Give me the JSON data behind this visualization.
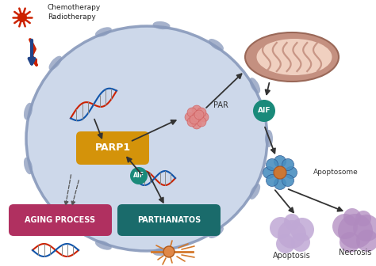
{
  "bg_color": "#ffffff",
  "cell_color": "#c8d4e8",
  "cell_border_color": "#8899bb",
  "parp1_color": "#d4930a",
  "parp1_text": "PARP1",
  "parp1_text_color": "#ffffff",
  "aging_color": "#b03060",
  "aging_text": "AGING PROCESS",
  "aging_text_color": "#ffffff",
  "parthanatos_color": "#1a6b6b",
  "parthanatos_text": "PARTHANATOS",
  "parthanatos_text_color": "#ffffff",
  "chemo_text": "Chemotherapy\nRadiotherapy",
  "par_text": "PAR",
  "aif_text": "AIF",
  "apoptosome_text": "Apoptosome",
  "apoptosis_text": "Apoptosis",
  "necrosis_text": "Necrosis",
  "arrow_color": "#333333",
  "mito_outer_color": "#c49080",
  "mito_inner_color": "#f0d0c0",
  "aif_circle_color": "#1a8a7a",
  "aif_text_color": "#ffffff",
  "dna_color1": "#cc2200",
  "dna_color2": "#1155aa"
}
